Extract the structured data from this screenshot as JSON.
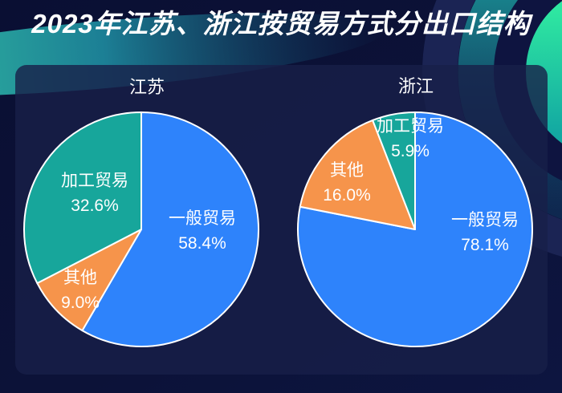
{
  "page": {
    "title": "2023年江苏、浙江按贸易方式分出口结构"
  },
  "colors": {
    "general_trade": "#2E83FB",
    "other": "#F6944B",
    "processing_trade": "#17A69B",
    "slice_border": "#FFFFFF",
    "text": "#FFFFFF",
    "background": "#0B1134",
    "card": "rgba(24,31,72,0.8)",
    "accent_teal": "#2FD3A4",
    "accent_green": "#2EE6A1"
  },
  "chart_data": [
    {
      "type": "pie",
      "title": "江苏",
      "start_angle_deg": 0,
      "direction": "clockwise",
      "slices": [
        {
          "label": "一般贸易",
          "value": 58.4,
          "display": "58.4%",
          "color": "#2E83FB"
        },
        {
          "label": "其他",
          "value": 9.0,
          "display": "9.0%",
          "color": "#F6944B"
        },
        {
          "label": "加工贸易",
          "value": 32.6,
          "display": "32.6%",
          "color": "#17A69B"
        }
      ]
    },
    {
      "type": "pie",
      "title": "浙江",
      "start_angle_deg": 0,
      "direction": "clockwise",
      "slices": [
        {
          "label": "一般贸易",
          "value": 78.1,
          "display": "78.1%",
          "color": "#2E83FB"
        },
        {
          "label": "其他",
          "value": 16.0,
          "display": "16.0%",
          "color": "#F6944B"
        },
        {
          "label": "加工贸易",
          "value": 5.9,
          "display": "5.9%",
          "color": "#17A69B"
        }
      ]
    }
  ]
}
